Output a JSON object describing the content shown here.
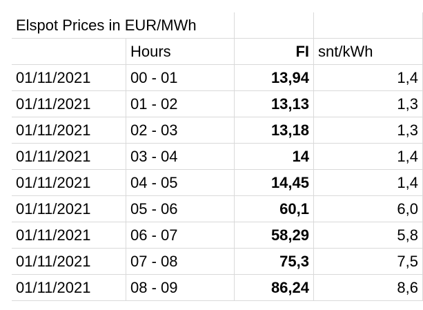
{
  "title": "Elspot Prices in EUR/MWh",
  "header": [
    "Hours",
    "FI",
    "snt/kWh"
  ],
  "rows": [
    [
      "01/11/2021",
      "00 - 01",
      "13,94",
      "1,4"
    ],
    [
      "01/11/2021",
      "01 - 02",
      "13,13",
      "1,3"
    ],
    [
      "01/11/2021",
      "02 - 03",
      "13,18",
      "1,3"
    ],
    [
      "01/11/2021",
      "03 - 04",
      "14",
      "1,4"
    ],
    [
      "01/11/2021",
      "04 - 05",
      "14,45",
      "1,4"
    ],
    [
      "01/11/2021",
      "05 - 06",
      "60,1",
      "6,0"
    ],
    [
      "01/11/2021",
      "06 - 07",
      "58,29",
      "5,8"
    ],
    [
      "01/11/2021",
      "07 - 08",
      "75,3",
      "7,5"
    ],
    [
      "01/11/2021",
      "08 - 09",
      "86,24",
      "8,6"
    ]
  ]
}
